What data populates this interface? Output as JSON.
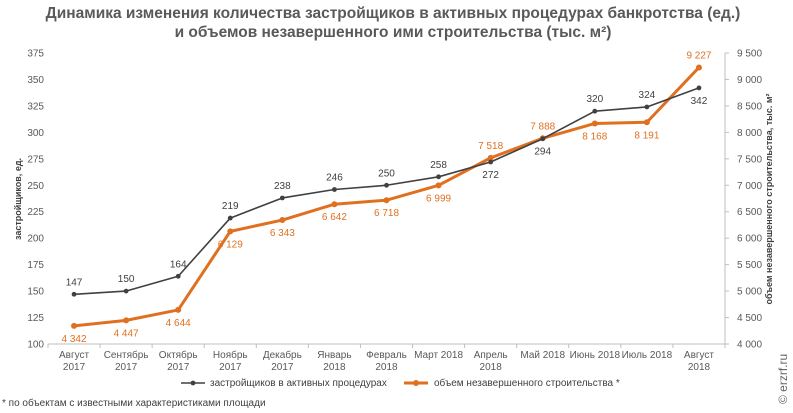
{
  "chart_data": {
    "type": "line",
    "title_line1": "Динамика изменения количества застройщиков в активных процедурах банкротства (ед.)",
    "title_line2": "и объемов незавершенного ими строительства (тыс. м²)",
    "categories": [
      [
        "Август",
        "2017"
      ],
      [
        "Сентябрь",
        "2017"
      ],
      [
        "Октябрь",
        "2017"
      ],
      [
        "Ноябрь",
        "2017"
      ],
      [
        "Декабрь",
        "2017"
      ],
      [
        "Январь",
        "2018"
      ],
      [
        "Февраль",
        "2018"
      ],
      [
        "Март 2018"
      ],
      [
        "Апрель",
        "2018"
      ],
      [
        "Май 2018"
      ],
      [
        "Июнь 2018"
      ],
      [
        "Июль 2018"
      ],
      [
        "Август",
        "2018"
      ]
    ],
    "ylabel_left": "застройщиков, ед.",
    "ylabel_right": "объем незавершенного строительства, тыс. м²",
    "y_left": {
      "min": 100,
      "max": 375,
      "step": 25,
      "ticks": [
        "100",
        "125",
        "150",
        "175",
        "200",
        "225",
        "250",
        "275",
        "300",
        "325",
        "350",
        "375"
      ]
    },
    "y_right": {
      "min": 4000,
      "max": 9500,
      "step": 500,
      "ticks": [
        "4 000",
        "4 500",
        "5 000",
        "5 500",
        "6 000",
        "6 500",
        "7 000",
        "7 500",
        "8 000",
        "8 500",
        "9 000",
        "9 500"
      ]
    },
    "series": [
      {
        "name": "застройщиков в активных процедурах",
        "axis": "left",
        "color": "#404040",
        "values": [
          147,
          150,
          164,
          219,
          238,
          246,
          250,
          258,
          272,
          294,
          320,
          324,
          342
        ],
        "labels": [
          "147",
          "150",
          "164",
          "219",
          "238",
          "246",
          "250",
          "258",
          "272",
          "294",
          "320",
          "324",
          "342"
        ]
      },
      {
        "name": "объем незавершенного строительства *",
        "axis": "right",
        "color": "#e07020",
        "values": [
          4342,
          4447,
          4644,
          6129,
          6343,
          6642,
          6718,
          6999,
          7518,
          7888,
          8168,
          8191,
          9227
        ],
        "labels": [
          "4 342",
          "4 447",
          "4 644",
          "6 129",
          "6 343",
          "6 642",
          "6 718",
          "6 999",
          "7 518",
          "7 888",
          "8 168",
          "8 191",
          "9 227"
        ]
      }
    ],
    "grid": false,
    "legend_position": "bottom"
  },
  "footnote": "* по объектам с известными характеристиками площади",
  "watermark": "© erzrf.ru"
}
